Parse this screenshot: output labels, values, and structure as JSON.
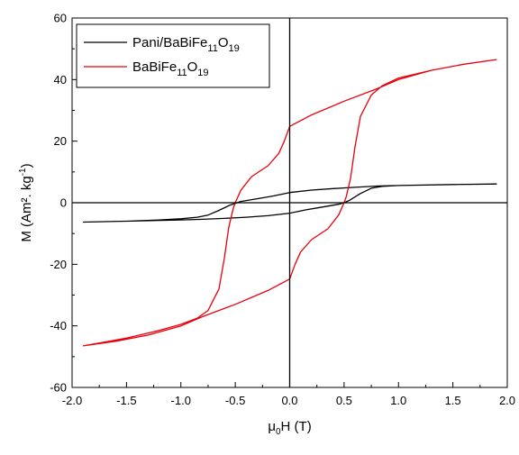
{
  "chart_data": {
    "type": "line",
    "title": "",
    "xlabel": {
      "base": "μ",
      "sub": "0",
      "rest": "H (T)"
    },
    "ylabel": {
      "text": "M (Am². kg",
      "sup": "-1",
      "close": ")"
    },
    "xlim": [
      -2.0,
      2.0
    ],
    "ylim": [
      -60,
      60
    ],
    "xticks": [
      "-2.0",
      "-1.5",
      "-1.0",
      "-0.5",
      "0.0",
      "0.5",
      "1.0",
      "1.5",
      "2.0"
    ],
    "yticks": [
      "-60",
      "-40",
      "-20",
      "0",
      "20",
      "40",
      "60"
    ],
    "grid": false,
    "legend": {
      "placement": "top-left",
      "entries": [
        {
          "parts": [
            [
              "Pani/BaBiFe",
              ""
            ],
            [
              "11",
              "sub"
            ],
            [
              "O",
              ""
            ],
            [
              "19",
              "sub"
            ]
          ],
          "color": "#000000"
        },
        {
          "parts": [
            [
              "BaBiFe",
              ""
            ],
            [
              "11",
              "sub"
            ],
            [
              "O",
              ""
            ],
            [
              "19",
              "sub"
            ]
          ],
          "color": "#e8000b"
        }
      ]
    },
    "series": [
      {
        "color": "#000000",
        "points": [
          [
            -1.9,
            -6.3
          ],
          [
            -1.5,
            -6.0
          ],
          [
            -1.2,
            -5.6
          ],
          [
            -1.0,
            -5.2
          ],
          [
            -0.85,
            -4.7
          ],
          [
            -0.75,
            -4.0
          ],
          [
            -0.65,
            -2.5
          ],
          [
            -0.55,
            -0.8
          ],
          [
            -0.5,
            -0.2
          ],
          [
            -0.45,
            0.4
          ],
          [
            -0.3,
            1.3
          ],
          [
            -0.15,
            2.2
          ],
          [
            0.0,
            3.3
          ],
          [
            0.2,
            4.1
          ],
          [
            0.4,
            4.6
          ],
          [
            0.6,
            5.0
          ],
          [
            0.8,
            5.4
          ],
          [
            1.0,
            5.6
          ],
          [
            1.5,
            5.9
          ],
          [
            1.9,
            6.1
          ],
          [
            1.5,
            5.9
          ],
          [
            1.0,
            5.6
          ],
          [
            0.85,
            5.3
          ],
          [
            0.75,
            4.7
          ],
          [
            0.65,
            3.0
          ],
          [
            0.55,
            0.8
          ],
          [
            0.5,
            0.0
          ],
          [
            0.45,
            -0.5
          ],
          [
            0.3,
            -1.4
          ],
          [
            0.15,
            -2.3
          ],
          [
            0.0,
            -3.4
          ],
          [
            -0.2,
            -4.2
          ],
          [
            -0.4,
            -4.7
          ],
          [
            -0.6,
            -5.1
          ],
          [
            -0.8,
            -5.4
          ],
          [
            -1.0,
            -5.6
          ],
          [
            -1.5,
            -6.0
          ],
          [
            -1.9,
            -6.3
          ]
        ]
      },
      {
        "color": "#e8000b",
        "points": [
          [
            -1.9,
            -46.5
          ],
          [
            -1.5,
            -44.0
          ],
          [
            -1.2,
            -41.5
          ],
          [
            -1.0,
            -39.5
          ],
          [
            -0.85,
            -37.5
          ],
          [
            -0.75,
            -35.0
          ],
          [
            -0.65,
            -28.0
          ],
          [
            -0.6,
            -18.0
          ],
          [
            -0.56,
            -8.0
          ],
          [
            -0.52,
            -2.0
          ],
          [
            -0.5,
            0.0
          ],
          [
            -0.45,
            4.0
          ],
          [
            -0.35,
            8.5
          ],
          [
            -0.2,
            12.0
          ],
          [
            -0.1,
            16.0
          ],
          [
            -0.05,
            20.0
          ],
          [
            0.0,
            24.8
          ],
          [
            0.2,
            28.5
          ],
          [
            0.5,
            33.0
          ],
          [
            0.8,
            37.0
          ],
          [
            1.0,
            40.0
          ],
          [
            1.3,
            43.0
          ],
          [
            1.6,
            45.0
          ],
          [
            1.9,
            46.5
          ],
          [
            1.6,
            45.0
          ],
          [
            1.3,
            43.0
          ],
          [
            1.0,
            40.5
          ],
          [
            0.85,
            38.0
          ],
          [
            0.75,
            35.0
          ],
          [
            0.65,
            28.0
          ],
          [
            0.6,
            18.0
          ],
          [
            0.56,
            8.0
          ],
          [
            0.52,
            2.0
          ],
          [
            0.5,
            0.0
          ],
          [
            0.45,
            -4.0
          ],
          [
            0.35,
            -8.5
          ],
          [
            0.2,
            -12.0
          ],
          [
            0.1,
            -16.0
          ],
          [
            0.05,
            -20.0
          ],
          [
            0.0,
            -24.8
          ],
          [
            -0.2,
            -28.5
          ],
          [
            -0.5,
            -33.0
          ],
          [
            -0.8,
            -37.0
          ],
          [
            -1.0,
            -40.0
          ],
          [
            -1.3,
            -43.0
          ],
          [
            -1.6,
            -45.0
          ],
          [
            -1.9,
            -46.5
          ]
        ]
      }
    ]
  }
}
